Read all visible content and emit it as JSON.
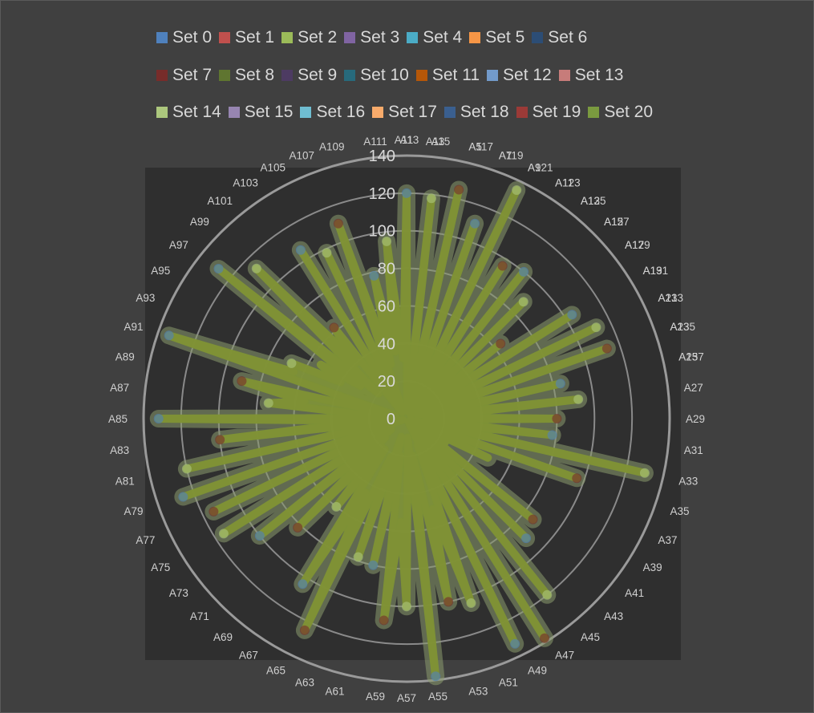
{
  "chart_data": {
    "type": "radar",
    "title": "",
    "rlim": [
      0,
      140
    ],
    "ticks": [
      "0",
      "20",
      "40",
      "60",
      "80",
      "100",
      "120",
      "140"
    ],
    "grid": true,
    "legend_position": "top",
    "categories": [
      "A1",
      "A3",
      "A5",
      "A7",
      "A9",
      "A11",
      "A13",
      "A15",
      "A17",
      "A19",
      "A21",
      "A23",
      "A25",
      "A27",
      "A29",
      "A31",
      "A33",
      "A35",
      "A37",
      "A39",
      "A41",
      "A43",
      "A45",
      "A47",
      "A49",
      "A51",
      "A53",
      "A55",
      "A57",
      "A59",
      "A61",
      "A63",
      "A65",
      "A67",
      "A69",
      "A71",
      "A73",
      "A75",
      "A77",
      "A79",
      "A81",
      "A83",
      "A85",
      "A87",
      "A89",
      "A91",
      "A93",
      "A95",
      "A97",
      "A99",
      "A101",
      "A103",
      "A105",
      "A107",
      "A109",
      "A111",
      "A113",
      "A115",
      "A117",
      "A119",
      "A121",
      "A123",
      "A125",
      "A127",
      "A129",
      "A131",
      "A133",
      "A135",
      "A137"
    ],
    "series_colors": [
      "#4f81bd",
      "#c0504d",
      "#9bbb59",
      "#8064a2",
      "#4bacc6",
      "#f79646",
      "#2c4d75",
      "#772c2a",
      "#5f7530",
      "#4d3b62",
      "#276a7c",
      "#b65708",
      "#729aca",
      "#c77c7a",
      "#acc77d",
      "#9785b1",
      "#6fbdd1",
      "#f9ab6b",
      "#3a5f8f",
      "#9b3a37",
      "#7a9a3f"
    ],
    "series": [
      {
        "name": "Set 0"
      },
      {
        "name": "Set 1"
      },
      {
        "name": "Set 2"
      },
      {
        "name": "Set 3"
      },
      {
        "name": "Set 4"
      },
      {
        "name": "Set 5"
      },
      {
        "name": "Set 6"
      },
      {
        "name": "Set 7"
      },
      {
        "name": "Set 8"
      },
      {
        "name": "Set 9"
      },
      {
        "name": "Set 10"
      },
      {
        "name": "Set 11"
      },
      {
        "name": "Set 12"
      },
      {
        "name": "Set 13"
      },
      {
        "name": "Set 14"
      },
      {
        "name": "Set 15"
      },
      {
        "name": "Set 16"
      },
      {
        "name": "Set 17"
      },
      {
        "name": "Set 18"
      },
      {
        "name": "Set 19"
      },
      {
        "name": "Set 20"
      }
    ],
    "envelope_values": [
      120,
      4,
      118,
      5,
      125,
      8,
      110,
      4,
      135,
      10,
      96,
      3,
      100,
      6,
      88,
      4,
      64,
      10,
      104,
      6,
      112,
      8,
      113,
      6,
      84,
      10,
      92,
      12,
      80,
      10,
      78,
      12,
      130,
      2,
      96,
      6,
      48,
      5,
      24,
      10,
      86,
      2,
      90,
      2,
      120,
      4,
      138,
      2,
      133,
      15,
      104,
      50,
      100,
      20,
      138,
      10,
      100,
      55,
      108,
      20,
      80,
      10,
      78,
      22,
      125,
      45,
      104,
      20,
      60,
      20,
      82,
      15,
      100,
      10,
      115,
      10,
      114,
      8,
      126,
      2,
      120,
      5,
      100,
      20,
      132,
      8,
      74,
      55,
      90,
      6,
      134,
      65,
      68,
      40,
      54,
      30,
      128,
      20,
      113,
      40,
      62,
      4,
      106,
      5,
      98,
      8,
      110,
      30,
      78,
      36,
      95,
      32
    ]
  }
}
